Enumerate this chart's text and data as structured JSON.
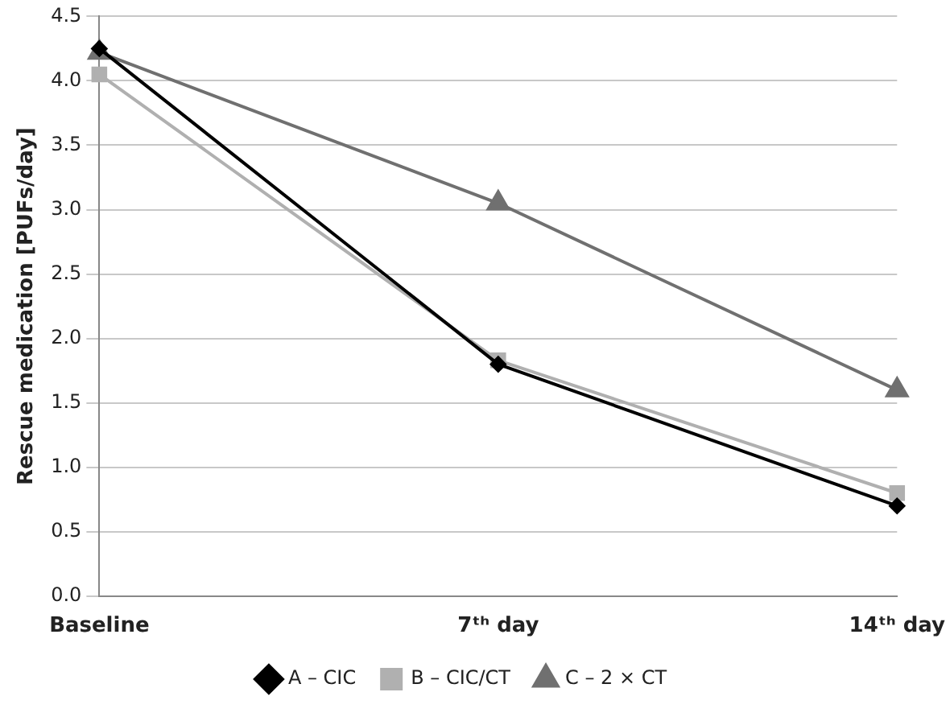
{
  "chart_data": {
    "type": "line",
    "ylabel": "Rescue medication [PUFs/day]",
    "categories": [
      "Baseline",
      "7ᵗʰ day",
      "14ᵗʰ day"
    ],
    "series": [
      {
        "name": "A – CIC",
        "color": "#000000",
        "marker": "diamond",
        "values": [
          4.25,
          1.8,
          0.7
        ]
      },
      {
        "name": "B – CIC/CT",
        "color": "#b0b0b0",
        "marker": "square",
        "values": [
          4.05,
          1.83,
          0.8
        ]
      },
      {
        "name": "C – 2 × CT",
        "color": "#707070",
        "marker": "triangle",
        "values": [
          4.22,
          3.05,
          1.6
        ]
      }
    ],
    "ylim": [
      0,
      4.5
    ],
    "yticks": [
      {
        "value": 0,
        "label": "0.0"
      },
      0.5,
      {
        "value": 1,
        "label": "1.0"
      },
      1.5,
      {
        "value": 2,
        "label": "2.0"
      },
      2.5,
      {
        "value": 3,
        "label": "3.0"
      },
      3.5,
      {
        "value": 4,
        "label": "4.0"
      },
      4.5
    ],
    "grid": "y",
    "legend": "bottom",
    "line_style": "solid"
  }
}
